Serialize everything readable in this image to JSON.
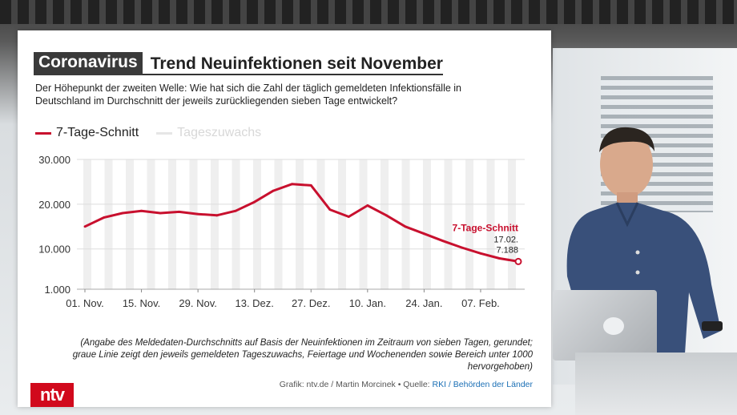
{
  "header": {
    "tag": "Coronavirus",
    "title": "Trend Neuinfektionen seit November"
  },
  "subtitle": "Der Höhepunkt der zweiten Welle: Wie hat sich die Zahl der täglich gemeldeten Infektionsfälle in Deutschland im Durchschnitt der jeweils zurückliegenden sieben Tage entwickelt?",
  "legend": {
    "series1": "7-Tage-Schnitt",
    "series2": "Tageszuwachs"
  },
  "footnote": "(Angabe des Meldedaten-Durchschnitts auf Basis der Neuinfektionen im Zeitraum von sieben Tagen, gerundet; graue Linie zeigt den jeweils gemeldeten Tageszuwachs, Feiertage und Wochenenden sowie Bereich unter 1000 hervorgehoben)",
  "credit": {
    "text": "Grafik: ntv.de / Martin Morcinek • Quelle: ",
    "source": "RKI / Behörden der Länder"
  },
  "logo": "ntv",
  "colors": {
    "series1": "#c8102e",
    "series2": "#e6e6e6",
    "title_box": "#3a3a3a",
    "logo": "#d1091c"
  },
  "chart_data": {
    "type": "line",
    "title": "Trend Neuinfektionen seit November",
    "x_tick_labels": [
      "01. Nov.",
      "15. Nov.",
      "29. Nov.",
      "13. Dez.",
      "27. Dez.",
      "10. Jan.",
      "24. Jan.",
      "07. Feb."
    ],
    "y_tick_labels": [
      "30.000",
      "20.000",
      "10.000",
      "1.000"
    ],
    "ylim": [
      1000,
      30000
    ],
    "grid": true,
    "legend_position": "top-left",
    "annotation": {
      "label": "7-Tage-Schnitt",
      "date": "17.02.",
      "value": "7.188"
    },
    "series": [
      {
        "name": "7-Tage-Schnitt",
        "x": [
          "01. Nov.",
          "05. Nov.",
          "10. Nov.",
          "15. Nov.",
          "20. Nov.",
          "25. Nov.",
          "29. Nov.",
          "04. Dez.",
          "09. Dez.",
          "13. Dez.",
          "18. Dez.",
          "23. Dez.",
          "27. Dez.",
          "31. Dez.",
          "05. Jan.",
          "10. Jan.",
          "15. Jan.",
          "20. Jan.",
          "24. Jan.",
          "29. Jan.",
          "03. Feb.",
          "07. Feb.",
          "12. Feb.",
          "17. Feb."
        ],
        "values": [
          15000,
          17000,
          18000,
          18500,
          18000,
          18300,
          17800,
          17500,
          18500,
          20500,
          23000,
          24500,
          24200,
          18800,
          17200,
          19700,
          17500,
          15000,
          13400,
          11800,
          10300,
          9000,
          7900,
          7188
        ]
      }
    ]
  }
}
